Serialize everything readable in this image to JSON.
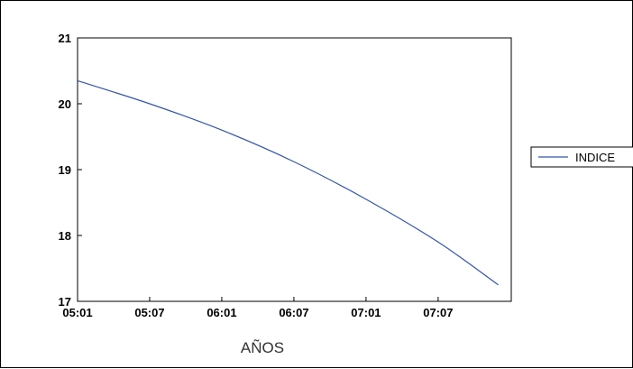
{
  "chart_data": {
    "type": "line",
    "title": "",
    "xlabel": "AÑOS",
    "ylabel": "",
    "x_tick_labels": [
      "05:01",
      "05:07",
      "06:01",
      "06:07",
      "07:01",
      "07:07"
    ],
    "ylim": [
      17,
      21
    ],
    "y_ticks": [
      17,
      18,
      19,
      20,
      21
    ],
    "grid": false,
    "legend_position": "right",
    "series": [
      {
        "name": "INDICE",
        "color": "#3355aa",
        "x": [
          "05:01",
          "05:07",
          "06:01",
          "06:07",
          "07:01",
          "07:07",
          "07:12"
        ],
        "values": [
          20.35,
          20.0,
          19.6,
          19.12,
          18.55,
          17.9,
          17.25
        ]
      }
    ]
  }
}
